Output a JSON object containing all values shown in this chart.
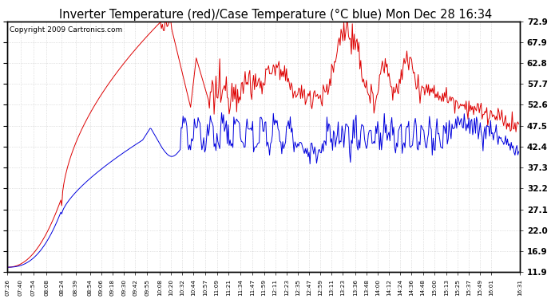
{
  "title": "Inverter Temperature (red)/Case Temperature (°C blue) Mon Dec 28 16:34",
  "copyright": "Copyright 2009 Cartronics.com",
  "ylabel_right": [
    "72.9",
    "67.9",
    "62.8",
    "57.7",
    "52.6",
    "47.5",
    "42.4",
    "37.3",
    "32.2",
    "27.1",
    "22.0",
    "16.9",
    "11.9"
  ],
  "ymin": 11.9,
  "ymax": 72.9,
  "yticks": [
    72.9,
    67.9,
    62.8,
    57.7,
    52.6,
    47.5,
    42.4,
    37.3,
    32.2,
    27.1,
    22.0,
    16.9,
    11.9
  ],
  "background_color": "#ffffff",
  "plot_bg_color": "#ffffff",
  "grid_color": "#c8c8c8",
  "red_color": "#dd0000",
  "blue_color": "#0000dd",
  "title_fontsize": 10.5,
  "copyright_fontsize": 6.5,
  "xtick_labels": [
    "07:26",
    "07:40",
    "07:54",
    "08:08",
    "08:24",
    "08:39",
    "08:54",
    "09:06",
    "09:18",
    "09:30",
    "09:42",
    "09:55",
    "10:08",
    "10:20",
    "10:32",
    "10:44",
    "10:57",
    "11:09",
    "11:21",
    "11:34",
    "11:47",
    "11:59",
    "12:11",
    "12:23",
    "12:35",
    "12:47",
    "12:59",
    "13:11",
    "13:23",
    "13:36",
    "13:48",
    "14:00",
    "14:12",
    "14:24",
    "14:36",
    "14:48",
    "15:00",
    "15:13",
    "15:25",
    "15:37",
    "15:49",
    "16:01",
    "16:31"
  ]
}
